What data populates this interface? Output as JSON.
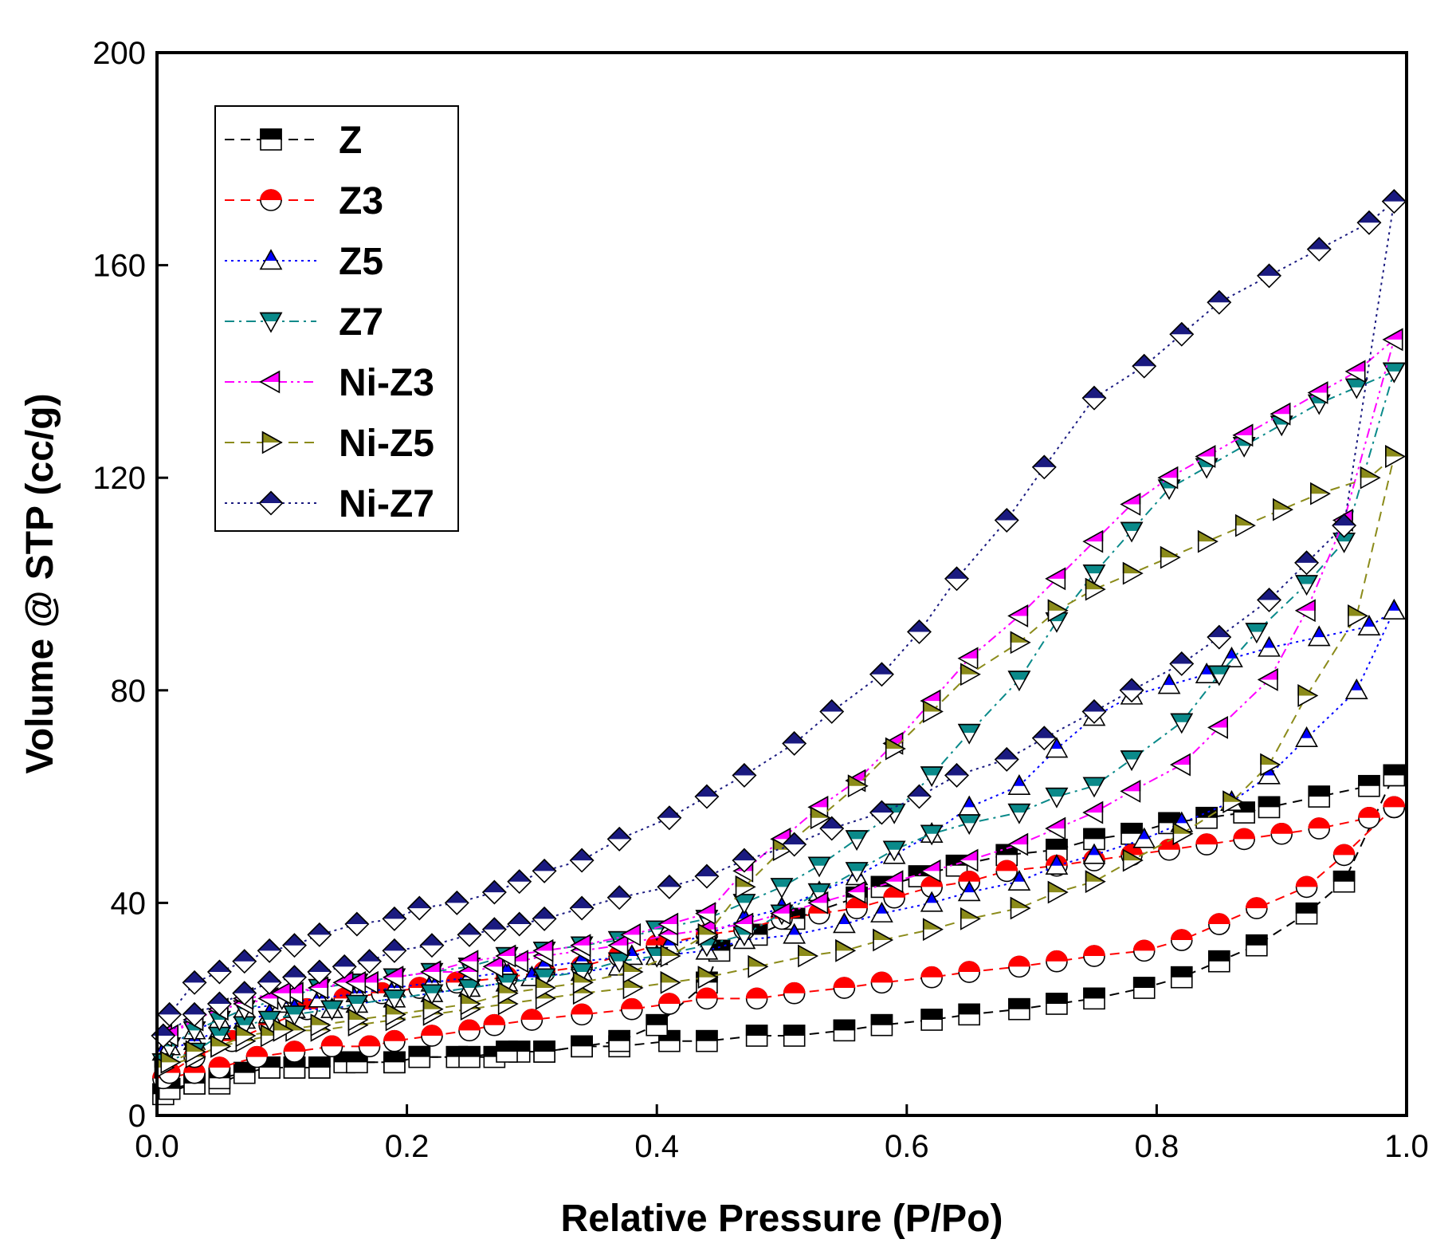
{
  "chart_data": {
    "type": "scatter",
    "title": "",
    "xlabel": "Relative Pressure (P/Po)",
    "ylabel": "Volume @ STP (cc/g)",
    "xlim": [
      0.0,
      1.0
    ],
    "ylim": [
      0,
      200
    ],
    "xticks": [
      "0.0",
      "0.2",
      "0.4",
      "0.6",
      "0.8",
      "1.0"
    ],
    "yticks": [
      "0",
      "40",
      "80",
      "120",
      "160",
      "200"
    ],
    "grid": false,
    "legend_position": "top-left",
    "series": [
      {
        "name": "Z",
        "color": "#000000",
        "marker": "square",
        "line_style": "dashed",
        "adsorption": {
          "x": [
            0.005,
            0.03,
            0.05,
            0.07,
            0.09,
            0.11,
            0.13,
            0.15,
            0.19,
            0.21,
            0.24,
            0.27,
            0.29,
            0.31,
            0.34,
            0.37,
            0.41,
            0.44,
            0.48,
            0.51,
            0.55,
            0.58,
            0.62,
            0.65,
            0.69,
            0.72,
            0.75,
            0.79,
            0.82,
            0.85,
            0.88,
            0.92,
            0.95,
            0.99
          ],
          "y": [
            4,
            6,
            6,
            8,
            9,
            9,
            9,
            10,
            10,
            11,
            11,
            11,
            12,
            12,
            13,
            13,
            14,
            14,
            15,
            15,
            16,
            17,
            18,
            19,
            20,
            21,
            22,
            24,
            26,
            29,
            32,
            38,
            44,
            64
          ]
        },
        "desorption": {
          "x": [
            0.99,
            0.97,
            0.93,
            0.89,
            0.87,
            0.84,
            0.81,
            0.78,
            0.75,
            0.72,
            0.68,
            0.64,
            0.61,
            0.58,
            0.56,
            0.51,
            0.48,
            0.45,
            0.44,
            0.4,
            0.37,
            0.34,
            0.31,
            0.28,
            0.25,
            0.21,
            0.19,
            0.16,
            0.13,
            0.11,
            0.09,
            0.07,
            0.05,
            0.03,
            0.01
          ],
          "y": [
            64,
            62,
            60,
            58,
            57,
            56,
            55,
            53,
            52,
            50,
            49,
            47,
            45,
            43,
            41,
            37,
            34,
            31,
            25,
            17,
            14,
            13,
            12,
            12,
            11,
            11,
            10,
            10,
            9,
            9,
            9,
            8,
            7,
            6,
            5
          ]
        }
      },
      {
        "name": "Z3",
        "color": "#ff0000",
        "marker": "circle",
        "line_style": "dashed",
        "adsorption": {
          "x": [
            0.005,
            0.03,
            0.05,
            0.08,
            0.11,
            0.14,
            0.17,
            0.19,
            0.22,
            0.25,
            0.27,
            0.3,
            0.34,
            0.38,
            0.41,
            0.44,
            0.48,
            0.51,
            0.55,
            0.58,
            0.62,
            0.65,
            0.69,
            0.72,
            0.75,
            0.79,
            0.82,
            0.85,
            0.88,
            0.92,
            0.95,
            0.99
          ],
          "y": [
            7,
            8,
            9,
            11,
            12,
            13,
            13,
            14,
            15,
            16,
            17,
            18,
            19,
            20,
            21,
            22,
            22,
            23,
            24,
            25,
            26,
            27,
            28,
            29,
            30,
            31,
            33,
            36,
            39,
            43,
            49,
            58
          ]
        },
        "desorption": {
          "x": [
            0.99,
            0.97,
            0.93,
            0.9,
            0.87,
            0.84,
            0.81,
            0.78,
            0.75,
            0.72,
            0.68,
            0.65,
            0.62,
            0.59,
            0.56,
            0.53,
            0.5,
            0.47,
            0.44,
            0.4,
            0.37,
            0.34,
            0.31,
            0.28,
            0.24,
            0.21,
            0.18,
            0.15,
            0.12,
            0.09,
            0.06,
            0.03,
            0.01
          ],
          "y": [
            58,
            56,
            54,
            53,
            52,
            51,
            50,
            49,
            48,
            47,
            46,
            44,
            43,
            41,
            39,
            38,
            37,
            35,
            34,
            32,
            30,
            28,
            27,
            26,
            25,
            24,
            23,
            22,
            20,
            17,
            14,
            11,
            8
          ]
        }
      },
      {
        "name": "Z5",
        "color": "#0000ff",
        "marker": "triangle-up",
        "line_style": "dotted",
        "adsorption": {
          "x": [
            0.005,
            0.03,
            0.05,
            0.07,
            0.09,
            0.11,
            0.14,
            0.16,
            0.19,
            0.22,
            0.25,
            0.28,
            0.3,
            0.34,
            0.37,
            0.4,
            0.44,
            0.47,
            0.51,
            0.55,
            0.58,
            0.62,
            0.65,
            0.69,
            0.72,
            0.75,
            0.79,
            0.82,
            0.86,
            0.89,
            0.92,
            0.96,
            0.99
          ],
          "y": [
            12,
            14,
            16,
            18,
            19,
            20,
            20,
            21,
            22,
            23,
            24,
            25,
            26,
            27,
            28,
            30,
            31,
            33,
            34,
            36,
            38,
            40,
            42,
            44,
            47,
            49,
            52,
            55,
            59,
            64,
            71,
            80,
            95
          ]
        },
        "desorption": {
          "x": [
            0.99,
            0.97,
            0.93,
            0.89,
            0.86,
            0.84,
            0.81,
            0.78,
            0.75,
            0.72,
            0.69,
            0.65,
            0.62,
            0.59,
            0.56,
            0.53,
            0.5,
            0.47,
            0.44,
            0.41,
            0.38,
            0.34,
            0.31,
            0.28,
            0.25,
            0.22,
            0.19,
            0.16,
            0.13,
            0.1,
            0.07,
            0.05,
            0.03,
            0.01
          ],
          "y": [
            95,
            92,
            90,
            88,
            86,
            83,
            81,
            79,
            75,
            69,
            62,
            58,
            53,
            49,
            45,
            42,
            39,
            37,
            34,
            32,
            30,
            29,
            28,
            27,
            26,
            25,
            24,
            23,
            22,
            21,
            20,
            18,
            16,
            13
          ]
        }
      },
      {
        "name": "Z7",
        "color": "#0a8a8a",
        "marker": "triangle-down",
        "line_style": "dashdot",
        "adsorption": {
          "x": [
            0.005,
            0.03,
            0.05,
            0.07,
            0.09,
            0.11,
            0.14,
            0.16,
            0.19,
            0.22,
            0.25,
            0.28,
            0.31,
            0.34,
            0.37,
            0.4,
            0.44,
            0.47,
            0.5,
            0.53,
            0.56,
            0.59,
            0.62,
            0.65,
            0.69,
            0.72,
            0.75,
            0.78,
            0.82,
            0.85,
            0.88,
            0.92,
            0.95,
            0.99
          ],
          "y": [
            10,
            12,
            15,
            17,
            18,
            19,
            20,
            21,
            22,
            23,
            24,
            25,
            26,
            27,
            29,
            30,
            32,
            34,
            38,
            42,
            46,
            50,
            53,
            55,
            57,
            60,
            62,
            67,
            74,
            83,
            91,
            100,
            108,
            140
          ]
        },
        "desorption": {
          "x": [
            0.99,
            0.96,
            0.93,
            0.9,
            0.87,
            0.84,
            0.81,
            0.78,
            0.75,
            0.72,
            0.69,
            0.65,
            0.62,
            0.59,
            0.56,
            0.53,
            0.5,
            0.47,
            0.44,
            0.4,
            0.37,
            0.34,
            0.31,
            0.28,
            0.25,
            0.22,
            0.19,
            0.16,
            0.13,
            0.1,
            0.07,
            0.05,
            0.03,
            0.01
          ],
          "y": [
            140,
            137,
            134,
            130,
            126,
            122,
            118,
            110,
            102,
            93,
            82,
            72,
            64,
            57,
            52,
            47,
            43,
            40,
            37,
            35,
            33,
            32,
            31,
            30,
            28,
            27,
            26,
            25,
            24,
            22,
            20,
            18,
            16,
            13
          ]
        }
      },
      {
        "name": "Ni-Z3",
        "color": "#ff00ff",
        "marker": "triangle-left",
        "line_style": "dashdotdot",
        "adsorption": {
          "x": [
            0.005,
            0.03,
            0.05,
            0.07,
            0.09,
            0.11,
            0.13,
            0.15,
            0.17,
            0.19,
            0.22,
            0.25,
            0.27,
            0.29,
            0.31,
            0.34,
            0.37,
            0.41,
            0.44,
            0.47,
            0.5,
            0.53,
            0.56,
            0.59,
            0.62,
            0.65,
            0.69,
            0.72,
            0.75,
            0.78,
            0.82,
            0.85,
            0.89,
            0.92,
            0.95,
            0.99
          ],
          "y": [
            15,
            18,
            20,
            21,
            22,
            23,
            24,
            25,
            25,
            26,
            27,
            27,
            28,
            29,
            30,
            31,
            32,
            34,
            35,
            36,
            38,
            40,
            42,
            44,
            46,
            48,
            51,
            54,
            57,
            61,
            66,
            73,
            82,
            95,
            112,
            146
          ]
        },
        "desorption": {
          "x": [
            0.99,
            0.96,
            0.93,
            0.9,
            0.87,
            0.84,
            0.81,
            0.78,
            0.75,
            0.72,
            0.69,
            0.65,
            0.62,
            0.59,
            0.56,
            0.53,
            0.5,
            0.47,
            0.44,
            0.41,
            0.38,
            0.34,
            0.31,
            0.28,
            0.25,
            0.22,
            0.19,
            0.16,
            0.13,
            0.1,
            0.07,
            0.05,
            0.03,
            0.01
          ],
          "y": [
            146,
            140,
            136,
            132,
            128,
            124,
            120,
            115,
            108,
            101,
            94,
            86,
            78,
            70,
            63,
            58,
            52,
            46,
            38,
            36,
            34,
            32,
            31,
            30,
            29,
            27,
            26,
            25,
            24,
            23,
            22,
            20,
            18,
            15
          ]
        }
      },
      {
        "name": "Ni-Z5",
        "color": "#8b8b1a",
        "marker": "triangle-right",
        "line_style": "dashed",
        "adsorption": {
          "x": [
            0.005,
            0.03,
            0.05,
            0.07,
            0.09,
            0.11,
            0.13,
            0.16,
            0.19,
            0.22,
            0.25,
            0.28,
            0.31,
            0.34,
            0.38,
            0.41,
            0.44,
            0.48,
            0.52,
            0.55,
            0.58,
            0.62,
            0.65,
            0.69,
            0.72,
            0.75,
            0.78,
            0.82,
            0.86,
            0.89,
            0.92,
            0.96,
            0.99
          ],
          "y": [
            9,
            11,
            13,
            14,
            15,
            16,
            16,
            17,
            18,
            19,
            20,
            21,
            22,
            23,
            24,
            25,
            26,
            28,
            30,
            31,
            33,
            35,
            37,
            39,
            42,
            44,
            48,
            53,
            59,
            66,
            79,
            94,
            124
          ]
        },
        "desorption": {
          "x": [
            0.99,
            0.97,
            0.93,
            0.9,
            0.87,
            0.84,
            0.81,
            0.78,
            0.75,
            0.72,
            0.69,
            0.65,
            0.62,
            0.59,
            0.56,
            0.53,
            0.5,
            0.47,
            0.44,
            0.41,
            0.38,
            0.34,
            0.31,
            0.28,
            0.25,
            0.22,
            0.19,
            0.16,
            0.13,
            0.1,
            0.07,
            0.05,
            0.03,
            0.01
          ],
          "y": [
            124,
            120,
            117,
            114,
            111,
            108,
            105,
            102,
            99,
            95,
            89,
            83,
            76,
            69,
            62,
            56,
            50,
            43,
            34,
            30,
            27,
            25,
            24,
            23,
            21,
            20,
            19,
            18,
            17,
            16,
            15,
            13,
            12,
            10
          ]
        }
      },
      {
        "name": "Ni-Z7",
        "color": "#1a1a80",
        "marker": "diamond",
        "line_style": "dotted",
        "adsorption": {
          "x": [
            0.005,
            0.03,
            0.05,
            0.07,
            0.09,
            0.11,
            0.13,
            0.15,
            0.17,
            0.19,
            0.22,
            0.25,
            0.27,
            0.29,
            0.31,
            0.34,
            0.37,
            0.41,
            0.44,
            0.47,
            0.51,
            0.54,
            0.58,
            0.61,
            0.64,
            0.68,
            0.71,
            0.75,
            0.78,
            0.82,
            0.85,
            0.89,
            0.92,
            0.95,
            0.99
          ],
          "y": [
            15,
            19,
            21,
            23,
            25,
            26,
            27,
            28,
            29,
            31,
            32,
            34,
            35,
            36,
            37,
            39,
            41,
            43,
            45,
            48,
            51,
            54,
            57,
            60,
            64,
            67,
            71,
            76,
            80,
            85,
            90,
            97,
            104,
            111,
            172
          ]
        },
        "desorption": {
          "x": [
            0.99,
            0.97,
            0.93,
            0.89,
            0.85,
            0.82,
            0.79,
            0.75,
            0.71,
            0.68,
            0.64,
            0.61,
            0.58,
            0.54,
            0.51,
            0.47,
            0.44,
            0.41,
            0.37,
            0.34,
            0.31,
            0.29,
            0.27,
            0.24,
            0.21,
            0.19,
            0.16,
            0.13,
            0.11,
            0.09,
            0.07,
            0.05,
            0.03,
            0.01
          ],
          "y": [
            172,
            168,
            163,
            158,
            153,
            147,
            141,
            135,
            122,
            112,
            101,
            91,
            83,
            76,
            70,
            64,
            60,
            56,
            52,
            48,
            46,
            44,
            42,
            40,
            39,
            37,
            36,
            34,
            32,
            31,
            29,
            27,
            25,
            19
          ]
        }
      }
    ]
  }
}
